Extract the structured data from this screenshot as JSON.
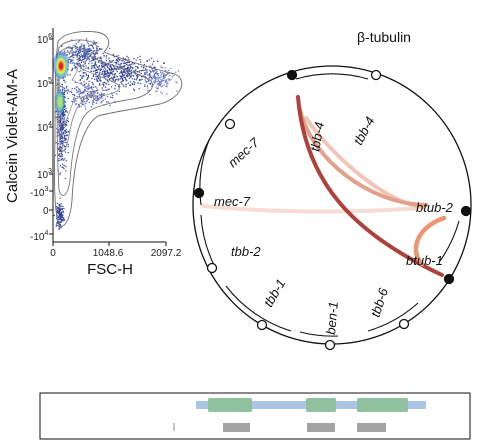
{
  "flow": {
    "y_label": "Calcein Violet-AM-A",
    "x_label": "FSC-H",
    "y_ticks": [
      {
        "base": "10",
        "exp": "6"
      },
      {
        "base": "10",
        "exp": "5"
      },
      {
        "base": "10",
        "exp": "4"
      },
      {
        "base": "10",
        "exp": "3"
      },
      {
        "base": "-10",
        "exp": "3"
      },
      {
        "base": "-10",
        "exp": "4"
      }
    ],
    "y_zero": "0",
    "x_ticks": [
      "0",
      "1048.6",
      "2097.2"
    ]
  },
  "circos": {
    "title": "β-tubulin",
    "labels": {
      "tbb4_a": "tbb-4",
      "tbb4_b": "tbb-4",
      "mec7_a": "mec-7",
      "mec7_b": "mec-7",
      "btub2": "btub-2",
      "tbb2": "tbb-2",
      "btub1": "btub-1",
      "tbb1": "tbb-1",
      "tbb6": "tbb-6",
      "ben1": "ben-1"
    },
    "link_colors": {
      "strong": "#b0403a",
      "medium": "#e3a08a",
      "light": "#f1c6b8",
      "faint": "#f6dcd4",
      "orange": "#ee9472"
    }
  },
  "gene_track": {
    "backbone_color": "#aac6e2",
    "exon_color": "#8fc19e",
    "block_color": "#a3a3a3"
  }
}
